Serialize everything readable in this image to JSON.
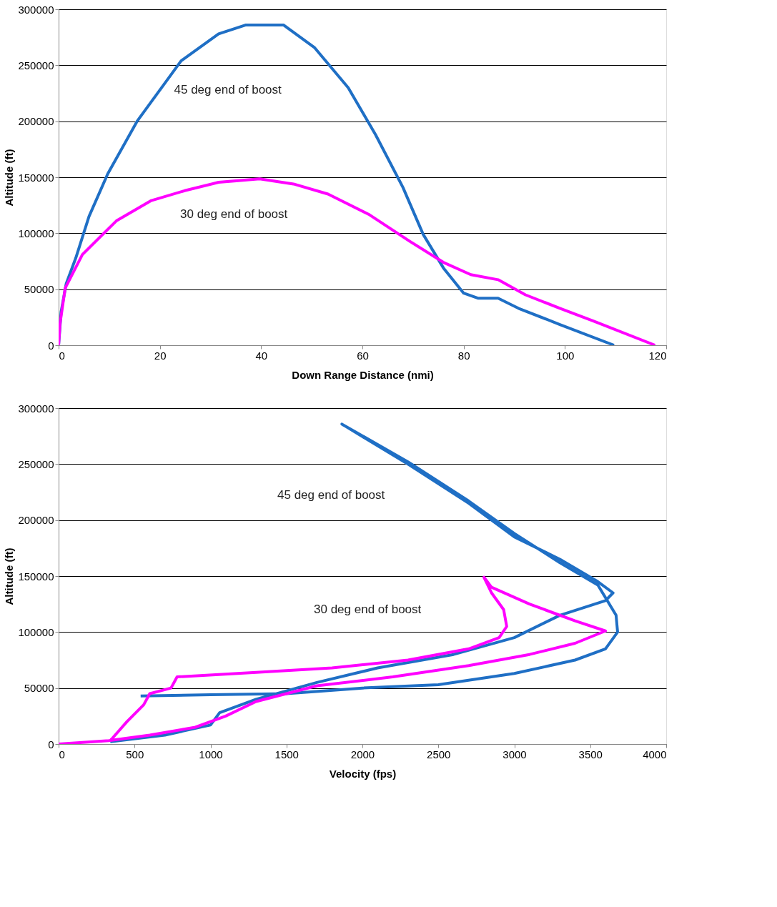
{
  "chart_data": [
    {
      "type": "line",
      "xlabel": "Down Range Distance (nmi)",
      "ylabel": "Altitude (ft)",
      "xlim": [
        0,
        120
      ],
      "ylim": [
        0,
        300000
      ],
      "xticks": [
        0,
        20,
        40,
        60,
        80,
        100,
        120
      ],
      "yticks": [
        0,
        50000,
        100000,
        150000,
        200000,
        250000,
        300000
      ],
      "grid": "y",
      "series": [
        {
          "color": "#1f6fc5",
          "x": [
            0,
            0.5,
            1.5,
            3.4,
            6,
            9.7,
            15.5,
            24.2,
            31.6,
            37,
            44.4,
            50.5,
            57.2,
            62.6,
            68,
            72,
            76,
            80,
            82.8,
            86.8,
            90.8,
            99,
            109.7
          ],
          "values": [
            0,
            30000,
            55000,
            78000,
            115000,
            153000,
            200000,
            254000,
            278000,
            286000,
            286000,
            266000,
            230000,
            188000,
            141000,
            99000,
            69000,
            46500,
            42000,
            42000,
            33000,
            18500,
            0
          ]
        },
        {
          "color": "#ff00ff",
          "x": [
            0,
            0.3,
            1.3,
            4.7,
            11.4,
            18.2,
            24.9,
            31.6,
            39.7,
            46.4,
            53.2,
            61.2,
            69.3,
            76,
            81.4,
            86.8,
            92.2,
            99,
            105.7,
            117.8
          ],
          "values": [
            0,
            20000,
            51000,
            81000,
            111000,
            129000,
            138000,
            145500,
            148500,
            144000,
            135000,
            117000,
            93000,
            74000,
            63000,
            58500,
            45000,
            33000,
            21500,
            0
          ]
        }
      ],
      "annotations": [
        "45 deg end of boost",
        "30 deg end of boost"
      ]
    },
    {
      "type": "line",
      "xlabel": "Velocity (fps)",
      "ylabel": "Altitude (ft)",
      "xlim": [
        0,
        4000
      ],
      "ylim": [
        0,
        300000
      ],
      "xticks": [
        0,
        500,
        1000,
        1500,
        2000,
        2500,
        3000,
        3500,
        4000
      ],
      "yticks": [
        0,
        50000,
        100000,
        150000,
        200000,
        250000,
        300000
      ],
      "grid": "y",
      "series": [
        {
          "color": "#1f6fc5",
          "x": [
            340,
            700,
            1000,
            1060,
            1300,
            1700,
            2100,
            2600,
            3000,
            3300,
            3600,
            3650,
            3550,
            3300,
            3000,
            2700,
            2300,
            1865,
            2300,
            2700,
            3000,
            3300,
            3550,
            3670,
            3680,
            3600,
            3400,
            3000,
            2500,
            2000,
            1500,
            1000,
            540
          ],
          "values": [
            2000,
            8000,
            17000,
            28000,
            40000,
            55000,
            68000,
            80000,
            95000,
            115000,
            128000,
            135000,
            145000,
            165000,
            185000,
            215000,
            250000,
            285700,
            252000,
            217000,
            188000,
            162000,
            142000,
            115000,
            100000,
            85000,
            75000,
            63000,
            53000,
            50000,
            45000,
            44000,
            43000
          ]
        },
        {
          "color": "#ff00ff",
          "x": [
            0,
            330,
            600,
            900,
            1100,
            1300,
            1700,
            2200,
            2700,
            3100,
            3400,
            3600,
            3400,
            3100,
            2850,
            2800,
            2850,
            2930,
            2950,
            2900,
            2700,
            2300,
            1800,
            1300,
            780,
            740,
            600,
            560,
            450,
            340
          ],
          "values": [
            0,
            3000,
            8000,
            15000,
            25000,
            38000,
            52000,
            60000,
            70000,
            80000,
            90000,
            101000,
            110000,
            125000,
            140000,
            149000,
            135000,
            120000,
            105000,
            95000,
            85000,
            75000,
            68000,
            64000,
            60000,
            50000,
            45000,
            35000,
            20000,
            3000
          ]
        }
      ],
      "annotations": [
        "45 deg end of boost",
        "30 deg end of boost"
      ]
    }
  ]
}
